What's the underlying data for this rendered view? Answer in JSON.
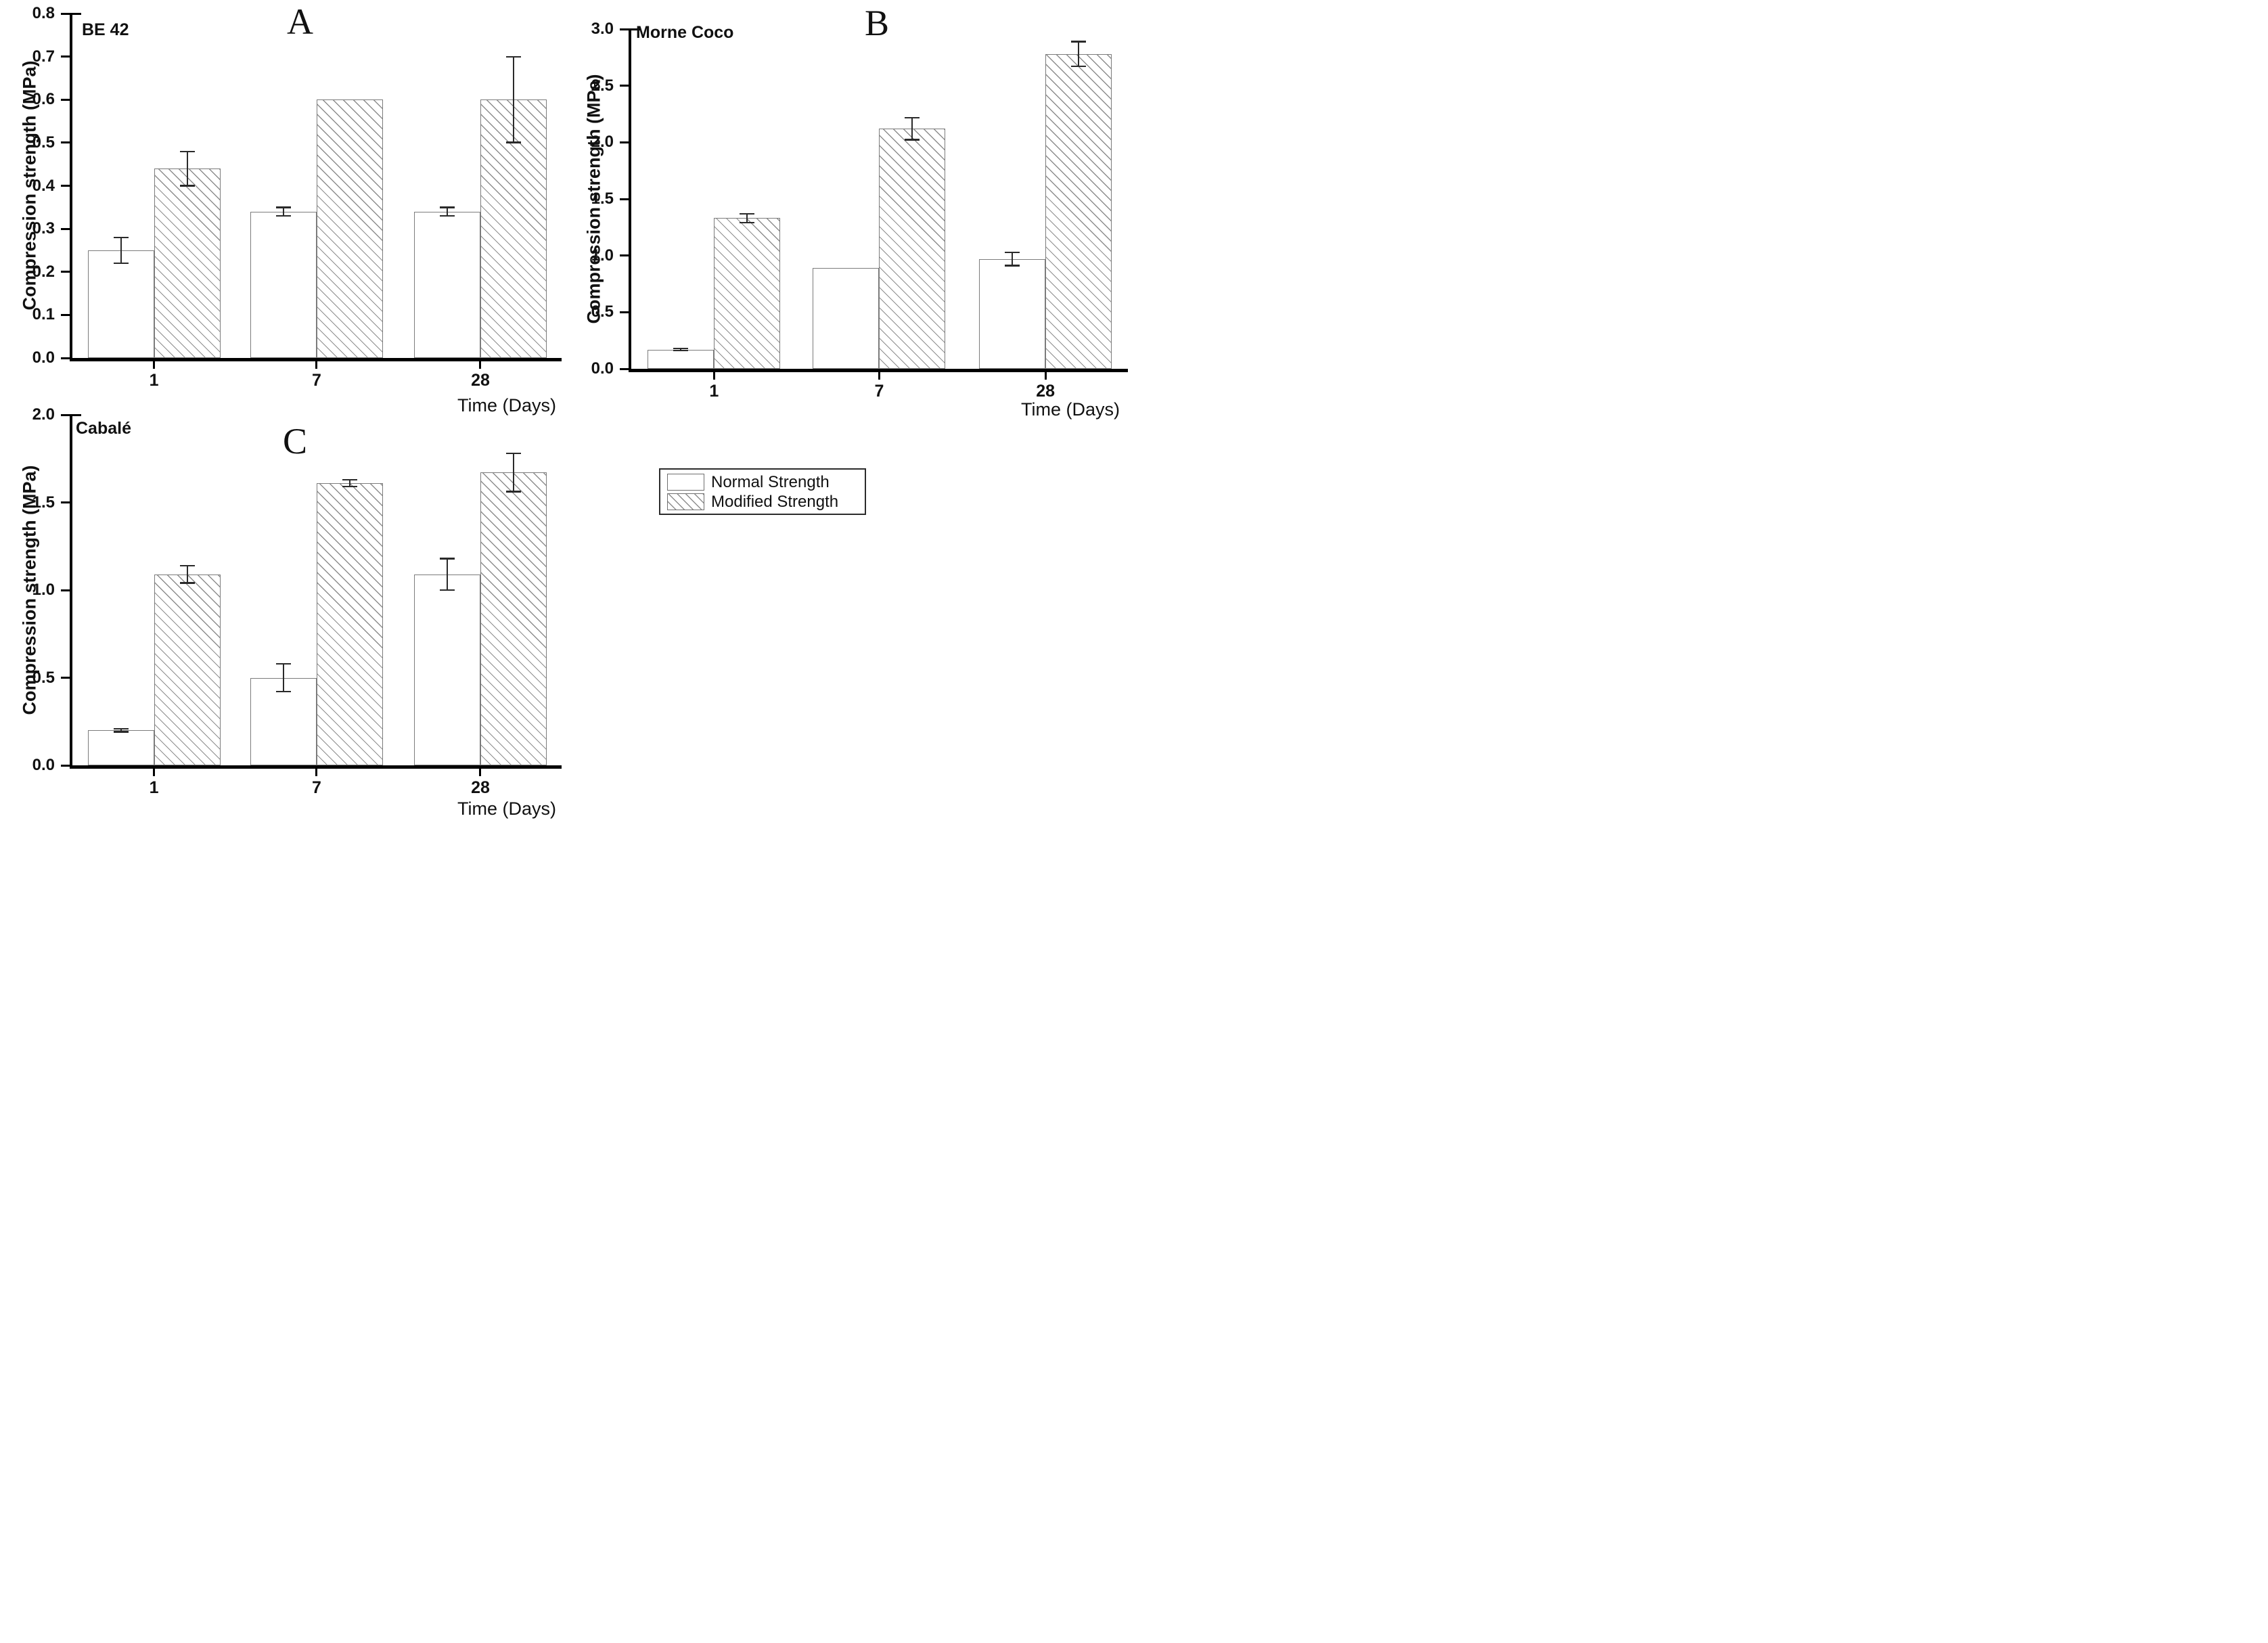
{
  "figure": {
    "background": "#ffffff",
    "colors": {
      "axis": "#000000",
      "bar_edge": "#7b7b7b",
      "hatch_line": "#8d8d8d",
      "error_bar": "#2a2a2a",
      "text": "#111111"
    },
    "series_names": [
      "Normal Strength",
      "Modified Strength"
    ]
  },
  "legend": {
    "items": [
      {
        "label": "Normal Strength",
        "pattern": "solid-white"
      },
      {
        "label": "Modified Strength",
        "pattern": "diagonal-hatch"
      }
    ]
  },
  "chart_data": [
    {
      "type": "bar",
      "panel": "A",
      "title": "BE 42",
      "xlabel": "Time (Days)",
      "ylabel": "Compression strength (MPa)",
      "categories": [
        "1",
        "7",
        "28"
      ],
      "ylim": [
        0,
        0.8
      ],
      "yticks": [
        "0.0",
        "0.1",
        "0.2",
        "0.3",
        "0.4",
        "0.5",
        "0.6",
        "0.7",
        "0.8"
      ],
      "grid": false,
      "series": [
        {
          "name": "Normal Strength",
          "values": [
            0.25,
            0.34,
            0.34
          ],
          "errors": [
            0.03,
            0.01,
            0.01
          ]
        },
        {
          "name": "Modified Strength",
          "values": [
            0.44,
            0.6,
            0.6
          ],
          "errors": [
            0.04,
            0,
            0.1
          ]
        }
      ]
    },
    {
      "type": "bar",
      "panel": "B",
      "title": "Morne Coco",
      "xlabel": "Time (Days)",
      "ylabel": "Compression strength (MPa)",
      "categories": [
        "1",
        "7",
        "28"
      ],
      "ylim": [
        0,
        3.0
      ],
      "yticks": [
        "0.0",
        "0.5",
        "1.0",
        "1.5",
        "2.0",
        "2.5",
        "3.0"
      ],
      "grid": false,
      "series": [
        {
          "name": "Normal Strength",
          "values": [
            0.17,
            0.89,
            0.97
          ],
          "errors": [
            0.01,
            0,
            0.06
          ]
        },
        {
          "name": "Modified Strength",
          "values": [
            1.33,
            2.12,
            2.78
          ],
          "errors": [
            0.04,
            0.1,
            0.11
          ]
        }
      ]
    },
    {
      "type": "bar",
      "panel": "C",
      "title": "Cabalé",
      "xlabel": "Time (Days)",
      "ylabel": "Compression strength (MPa)",
      "categories": [
        "1",
        "7",
        "28"
      ],
      "ylim": [
        0,
        2.0
      ],
      "yticks": [
        "0.0",
        "0.5",
        "1.0",
        "1.5",
        "2.0"
      ],
      "grid": false,
      "series": [
        {
          "name": "Normal Strength",
          "values": [
            0.2,
            0.5,
            1.09
          ],
          "errors": [
            0.01,
            0.08,
            0.09
          ]
        },
        {
          "name": "Modified Strength",
          "values": [
            1.09,
            1.61,
            1.67
          ],
          "errors": [
            0.05,
            0.02,
            0.11
          ]
        }
      ]
    }
  ]
}
